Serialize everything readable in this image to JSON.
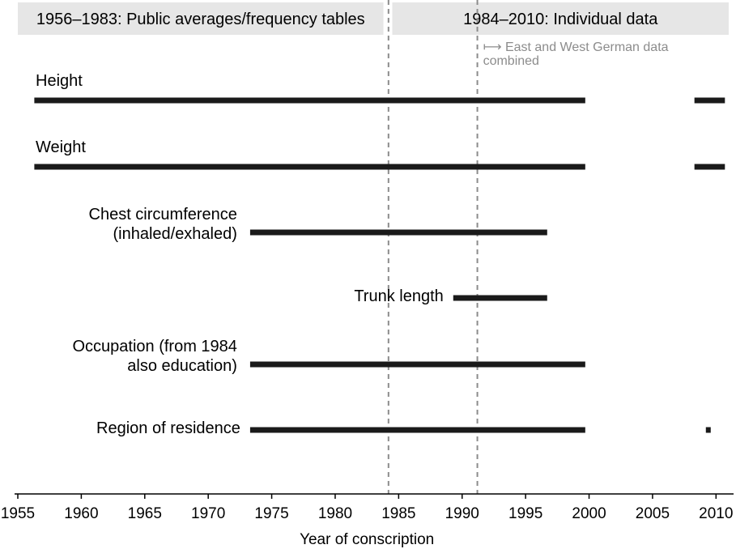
{
  "chart_data": {
    "type": "timeline",
    "xlabel": "Year of conscription",
    "xlim": [
      1955,
      2011
    ],
    "x_ticks": [
      1955,
      1960,
      1965,
      1970,
      1975,
      1980,
      1985,
      1990,
      1995,
      2000,
      2005,
      2010
    ],
    "x_tick_labels": [
      "1955",
      "1960",
      "1965",
      "1970",
      "1975",
      "1980",
      "1985",
      "1990",
      "1995",
      "2000",
      "2005",
      "2010"
    ],
    "periods": [
      {
        "label": "1956–1983: Public averages/frequency tables",
        "start": 1955,
        "end": 1983.8
      },
      {
        "label": "1984–2010: Individual data",
        "start": 1984.5,
        "end": 2011
      }
    ],
    "vlines": [
      {
        "x": 1984.2,
        "style": "dashed"
      },
      {
        "x": 1991.2,
        "style": "dashed"
      }
    ],
    "annotation": {
      "x": 1991.2,
      "symbol": "⟼",
      "lines": [
        "East and West German data",
        "combined"
      ]
    },
    "series": [
      {
        "label_lines": [
          "Height"
        ],
        "segments": [
          [
            1956.3,
            1999.7
          ],
          [
            2008.3,
            2010.7
          ]
        ]
      },
      {
        "label_lines": [
          "Weight"
        ],
        "segments": [
          [
            1956.3,
            1999.7
          ],
          [
            2008.3,
            2010.7
          ]
        ]
      },
      {
        "label_lines": [
          "Chest circumference",
          "(inhaled/exhaled)"
        ],
        "segments": [
          [
            1973.3,
            1996.7
          ]
        ]
      },
      {
        "label_lines": [
          "Trunk length"
        ],
        "segments": [
          [
            1989.3,
            1996.7
          ]
        ]
      },
      {
        "label_lines": [
          "Occupation (from 1984",
          "also education)"
        ],
        "segments": [
          [
            1973.3,
            1999.7
          ]
        ]
      },
      {
        "label_lines": [
          "Region of residence"
        ],
        "segments": [
          [
            1973.3,
            1999.7
          ],
          [
            2009.2,
            2009.5
          ]
        ]
      }
    ],
    "colors": {
      "bar": "#1a1a1a",
      "period_band": "#e6e6e6",
      "dashed_line": "#8c8c8c",
      "annotation_text": "#8c8c8c"
    }
  }
}
